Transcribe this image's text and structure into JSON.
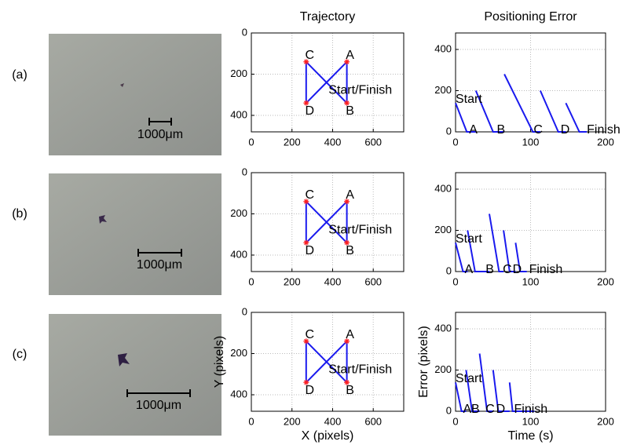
{
  "panel_labels": [
    "(a)",
    "(b)",
    "(c)"
  ],
  "images": [
    {
      "scale_label": "1000μm"
    },
    {
      "scale_label": "1000μm"
    },
    {
      "scale_label": "1000μm"
    }
  ],
  "chart_data": [
    {
      "type": "line",
      "title": "Trajectory",
      "xlim": [
        0,
        750
      ],
      "xticks": [
        0,
        200,
        400,
        600
      ],
      "ylim": [
        0,
        480
      ],
      "y_reversed": true,
      "yticks": [
        0,
        200,
        400
      ],
      "grid": true,
      "series": [
        {
          "color": "#1a1aee",
          "x": [
            370,
            470,
            470,
            270,
            270,
            370
          ],
          "values": [
            240,
            140,
            340,
            140,
            340,
            240
          ]
        },
        {
          "color": "#ff2020",
          "marker": "star",
          "x": [
            470,
            470,
            270,
            270
          ],
          "values": [
            140,
            340,
            140,
            340
          ]
        }
      ],
      "annotations": [
        {
          "text": "C",
          "x": 265,
          "y": 110
        },
        {
          "text": "A",
          "x": 465,
          "y": 110
        },
        {
          "text": "Start/Finish",
          "x": 380,
          "y": 280
        },
        {
          "text": "D",
          "x": 265,
          "y": 380
        },
        {
          "text": "B",
          "x": 465,
          "y": 380
        }
      ]
    },
    {
      "type": "line",
      "title": "Positioning Error",
      "xlim": [
        0,
        200
      ],
      "xticks": [
        0,
        100,
        200
      ],
      "ylim": [
        0,
        480
      ],
      "yticks": [
        0,
        200,
        400
      ],
      "grid": true,
      "series": [
        {
          "color": "#1a1aee",
          "x": [
            0,
            15,
            27,
            null,
            27,
            50,
            65,
            null,
            65,
            103,
            113,
            null,
            113,
            137,
            147,
            null,
            147,
            165,
            175
          ],
          "values": [
            140,
            0,
            0,
            null,
            200,
            0,
            0,
            null,
            280,
            0,
            0,
            null,
            200,
            0,
            0,
            null,
            140,
            0,
            0
          ]
        }
      ],
      "annotations": [
        {
          "text": "Start",
          "x": 0,
          "y": 150
        },
        {
          "text": "A",
          "x": 18,
          "y": 0
        },
        {
          "text": "B",
          "x": 55,
          "y": 0
        },
        {
          "text": "C",
          "x": 104,
          "y": 0
        },
        {
          "text": "D",
          "x": 140,
          "y": 0
        },
        {
          "text": "Finish",
          "x": 175,
          "y": 0
        }
      ]
    },
    {
      "type": "line",
      "xlim": [
        0,
        750
      ],
      "xticks": [
        0,
        200,
        400,
        600
      ],
      "ylim": [
        0,
        480
      ],
      "y_reversed": true,
      "yticks": [
        0,
        200,
        400
      ],
      "grid": true,
      "series": [
        {
          "color": "#1a1aee",
          "x": [
            370,
            470,
            470,
            270,
            270,
            370
          ],
          "values": [
            240,
            140,
            340,
            140,
            340,
            240
          ]
        },
        {
          "color": "#ff2020",
          "marker": "star",
          "x": [
            470,
            470,
            270,
            270
          ],
          "values": [
            140,
            340,
            140,
            340
          ]
        }
      ],
      "annotations": [
        {
          "text": "C",
          "x": 265,
          "y": 110
        },
        {
          "text": "A",
          "x": 465,
          "y": 110
        },
        {
          "text": "Start/Finish",
          "x": 380,
          "y": 280
        },
        {
          "text": "D",
          "x": 265,
          "y": 380
        },
        {
          "text": "B",
          "x": 465,
          "y": 380
        }
      ]
    },
    {
      "type": "line",
      "xlim": [
        0,
        200
      ],
      "xticks": [
        0,
        100,
        200
      ],
      "ylim": [
        0,
        480
      ],
      "yticks": [
        0,
        200,
        400
      ],
      "grid": true,
      "series": [
        {
          "color": "#1a1aee",
          "x": [
            0,
            10,
            16,
            null,
            16,
            26,
            45,
            null,
            45,
            58,
            64,
            null,
            64,
            72,
            80,
            null,
            80,
            86,
            95
          ],
          "values": [
            140,
            0,
            0,
            null,
            200,
            0,
            0,
            null,
            280,
            0,
            0,
            null,
            200,
            0,
            0,
            null,
            140,
            0,
            0
          ]
        }
      ],
      "annotations": [
        {
          "text": "Start",
          "x": 0,
          "y": 150
        },
        {
          "text": "A",
          "x": 12,
          "y": 0
        },
        {
          "text": "B",
          "x": 40,
          "y": 0
        },
        {
          "text": "C",
          "x": 63,
          "y": 0
        },
        {
          "text": "D",
          "x": 76,
          "y": 0
        },
        {
          "text": "Finish",
          "x": 98,
          "y": 0
        }
      ]
    },
    {
      "type": "line",
      "xlim": [
        0,
        750
      ],
      "xticks": [
        0,
        200,
        400,
        600
      ],
      "ylim": [
        0,
        480
      ],
      "y_reversed": true,
      "yticks": [
        0,
        200,
        400
      ],
      "grid": true,
      "xlabel": "X (pixels)",
      "ylabel": "Y (pixels)",
      "series": [
        {
          "color": "#1a1aee",
          "x": [
            370,
            470,
            470,
            270,
            270,
            370
          ],
          "values": [
            240,
            140,
            340,
            140,
            340,
            240
          ]
        },
        {
          "color": "#ff2020",
          "marker": "star",
          "x": [
            470,
            470,
            270,
            270
          ],
          "values": [
            140,
            340,
            140,
            340
          ]
        }
      ],
      "annotations": [
        {
          "text": "C",
          "x": 265,
          "y": 110
        },
        {
          "text": "A",
          "x": 465,
          "y": 110
        },
        {
          "text": "Start/Finish",
          "x": 380,
          "y": 280
        },
        {
          "text": "D",
          "x": 265,
          "y": 380
        },
        {
          "text": "B",
          "x": 465,
          "y": 380
        }
      ]
    },
    {
      "type": "line",
      "xlim": [
        0,
        200
      ],
      "xticks": [
        0,
        100,
        200
      ],
      "ylim": [
        0,
        480
      ],
      "yticks": [
        0,
        200,
        400
      ],
      "grid": true,
      "xlabel": "Time (s)",
      "ylabel": "Error (pixels)",
      "series": [
        {
          "color": "#1a1aee",
          "x": [
            0,
            8,
            14,
            null,
            14,
            22,
            32,
            null,
            32,
            42,
            50,
            null,
            50,
            57,
            72,
            null,
            72,
            76,
            105
          ],
          "values": [
            140,
            0,
            0,
            null,
            200,
            0,
            0,
            null,
            280,
            0,
            0,
            null,
            200,
            0,
            0,
            null,
            140,
            0,
            0
          ]
        }
      ],
      "annotations": [
        {
          "text": "Start",
          "x": 0,
          "y": 150
        },
        {
          "text": "A",
          "x": 10,
          "y": 0
        },
        {
          "text": "B",
          "x": 21,
          "y": 0
        },
        {
          "text": "C",
          "x": 40,
          "y": 0
        },
        {
          "text": "D",
          "x": 54,
          "y": 0
        },
        {
          "text": "Finish",
          "x": 78,
          "y": 0
        }
      ]
    }
  ]
}
